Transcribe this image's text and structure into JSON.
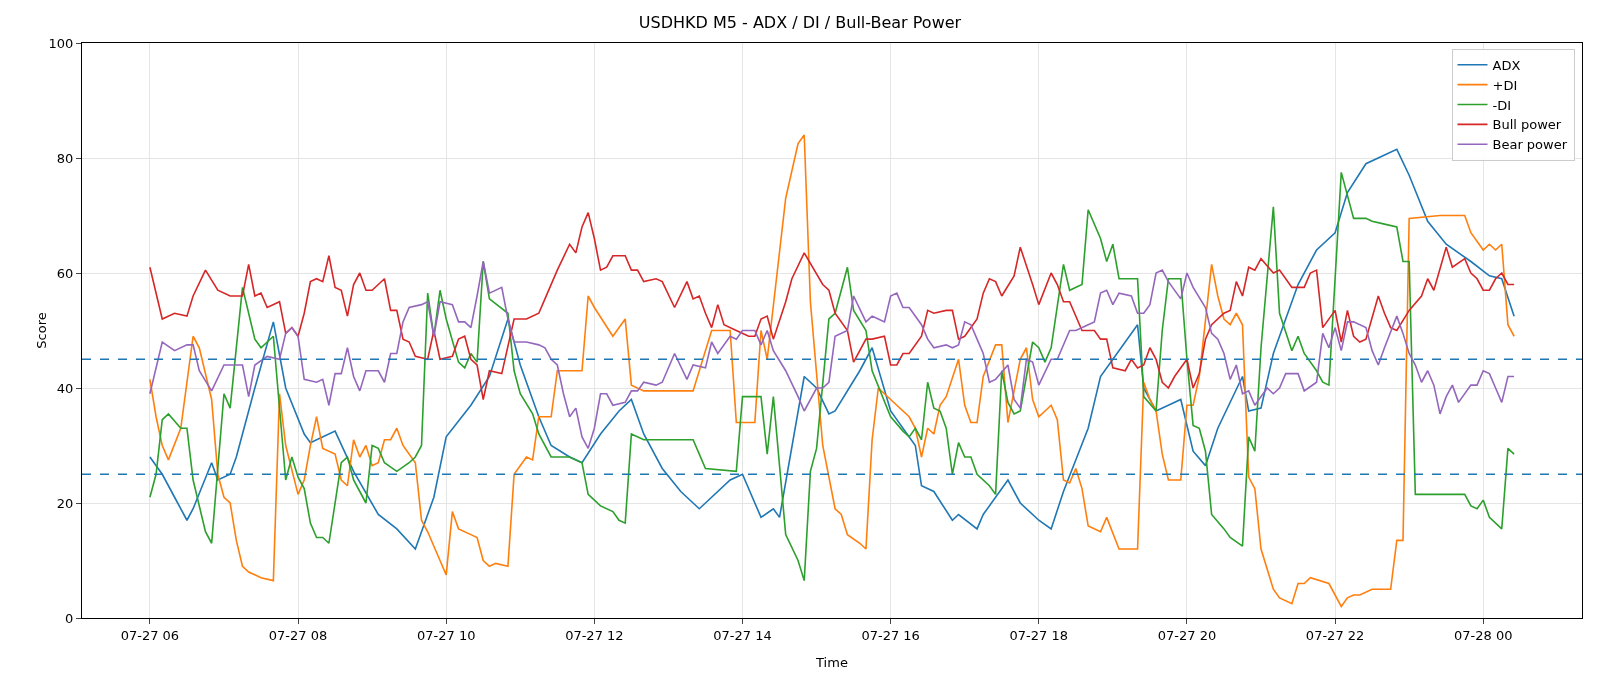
{
  "chart_data": {
    "type": "line",
    "title": "USDHKD M5 - ADX / DI / Bull-Bear Power",
    "xlabel": "Time",
    "ylabel": "Score",
    "xlim": [
      "--07-27T05:05",
      "--07-28T01:20"
    ],
    "xticks": [
      {
        "value": "--07-27T06:00",
        "label": "07-27 06"
      },
      {
        "value": "--07-27T08:00",
        "label": "07-27 08"
      },
      {
        "value": "--07-27T10:00",
        "label": "07-27 10"
      },
      {
        "value": "--07-27T12:00",
        "label": "07-27 12"
      },
      {
        "value": "--07-27T14:00",
        "label": "07-27 14"
      },
      {
        "value": "--07-27T16:00",
        "label": "07-27 16"
      },
      {
        "value": "--07-27T18:00",
        "label": "07-27 18"
      },
      {
        "value": "--07-27T20:00",
        "label": "07-27 20"
      },
      {
        "value": "--07-27T22:00",
        "label": "07-27 22"
      },
      {
        "value": "--07-28T00:00",
        "label": "07-28 00"
      }
    ],
    "ylim": [
      0,
      100
    ],
    "yticks": [
      0,
      20,
      40,
      60,
      80,
      100
    ],
    "grid": true,
    "legend": "top right",
    "line_style": "solid",
    "ref_lines": [
      {
        "axis": "y",
        "value": 45,
        "color": "#1f77b4",
        "line_style": "dashed"
      },
      {
        "axis": "y",
        "value": 25,
        "color": "#1f77b4",
        "line_style": "dashed"
      }
    ],
    "series": [
      {
        "name": "ADX",
        "color": "#1f77b4",
        "x": [
          "--07-27T06:00",
          "--07-27T06:10",
          "--07-27T06:20",
          "--07-27T06:30",
          "--07-27T06:35",
          "--07-27T06:50",
          "--07-27T06:55",
          "--07-27T07:05",
          "--07-27T07:10",
          "--07-27T07:25",
          "--07-27T07:40",
          "--07-27T07:50",
          "--07-27T08:05",
          "--07-27T08:10",
          "--07-27T08:30",
          "--07-27T08:45",
          "--07-27T09:05",
          "--07-27T09:20",
          "--07-27T09:35",
          "--07-27T09:50",
          "--07-27T10:00",
          "--07-27T10:20",
          "--07-27T10:35",
          "--07-27T10:50",
          "--07-27T11:00",
          "--07-27T11:15",
          "--07-27T11:25",
          "--07-27T11:40",
          "--07-27T11:50",
          "--07-27T12:05",
          "--07-27T12:20",
          "--07-27T12:30",
          "--07-27T12:40",
          "--07-27T12:55",
          "--07-27T13:10",
          "--07-27T13:25",
          "--07-27T13:30",
          "--07-27T13:50",
          "--07-27T14:00",
          "--07-27T14:15",
          "--07-27T14:25",
          "--07-27T14:30",
          "--07-27T14:50",
          "--07-27T15:00",
          "--07-27T15:10",
          "--07-27T15:15",
          "--07-27T15:35",
          "--07-27T15:45",
          "--07-27T16:00",
          "--07-27T16:20",
          "--07-27T16:25",
          "--07-27T16:35",
          "--07-27T16:50",
          "--07-27T16:55",
          "--07-27T17:10",
          "--07-27T17:15",
          "--07-27T17:35",
          "--07-27T17:45",
          "--07-27T18:00",
          "--07-27T18:10",
          "--07-27T18:20",
          "--07-27T18:40",
          "--07-27T18:50",
          "--07-27T19:20",
          "--07-27T19:25",
          "--07-27T19:35",
          "--07-27T19:55",
          "--07-27T20:05",
          "--07-27T20:15",
          "--07-27T20:25",
          "--07-27T20:45",
          "--07-27T20:50",
          "--07-27T21:00",
          "--07-27T21:10",
          "--07-27T21:30",
          "--07-27T21:45",
          "--07-27T22:00",
          "--07-27T22:10",
          "--07-27T22:25",
          "--07-27T22:50",
          "--07-27T23:00",
          "--07-27T23:15",
          "--07-27T23:30",
          "--07-27T23:50",
          "--07-28T00:05",
          "--07-28T00:15",
          "--07-28T00:25"
        ],
        "values": [
          28,
          25,
          21,
          17,
          19,
          27,
          24,
          25,
          28,
          40,
          51.5,
          40,
          32,
          30.5,
          32.5,
          25.5,
          18,
          15.5,
          12,
          21,
          31.5,
          37,
          42,
          52,
          44,
          35,
          30,
          28,
          27,
          32,
          36,
          38,
          32,
          26,
          22,
          19,
          20,
          24,
          25,
          17.5,
          19,
          17.5,
          42,
          40,
          35.5,
          36,
          43,
          47,
          36,
          30,
          23,
          22,
          17,
          18,
          15.5,
          18,
          24,
          20,
          17,
          15.5,
          22,
          33,
          42,
          51,
          40,
          36,
          38,
          29,
          26.5,
          33,
          42,
          36,
          36.5,
          46,
          58,
          64,
          67,
          74,
          79,
          81.5,
          77,
          69,
          65,
          62,
          59.5,
          59,
          52.5
        ]
      },
      {
        "name": "+DI",
        "color": "#ff7f0e",
        "x": [
          "--07-27T06:00",
          "--07-27T06:05",
          "--07-27T06:10",
          "--07-27T06:15",
          "--07-27T06:25",
          "--07-27T06:35",
          "--07-27T06:40",
          "--07-27T06:50",
          "--07-27T06:55",
          "--07-27T07:00",
          "--07-27T07:05",
          "--07-27T07:10",
          "--07-27T07:15",
          "--07-27T07:20",
          "--07-27T07:30",
          "--07-27T07:40",
          "--07-27T07:45",
          "--07-27T07:50",
          "--07-27T08:00",
          "--07-27T08:05",
          "--07-27T08:10",
          "--07-27T08:15",
          "--07-27T08:20",
          "--07-27T08:30",
          "--07-27T08:35",
          "--07-27T08:40",
          "--07-27T08:45",
          "--07-27T08:50",
          "--07-27T08:55",
          "--07-27T09:00",
          "--07-27T09:05",
          "--07-27T09:10",
          "--07-27T09:15",
          "--07-27T09:20",
          "--07-27T09:25",
          "--07-27T09:35",
          "--07-27T09:40",
          "--07-27T09:45",
          "--07-27T09:55",
          "--07-27T10:00",
          "--07-27T10:05",
          "--07-27T10:10",
          "--07-27T10:20",
          "--07-27T10:25",
          "--07-27T10:30",
          "--07-27T10:35",
          "--07-27T10:40",
          "--07-27T10:50",
          "--07-27T10:55",
          "--07-27T11:05",
          "--07-27T11:10",
          "--07-27T11:15",
          "--07-27T11:25",
          "--07-27T11:30",
          "--07-27T11:50",
          "--07-27T11:55",
          "--07-27T12:00",
          "--07-27T12:15",
          "--07-27T12:25",
          "--07-27T12:30",
          "--07-27T12:40",
          "--07-27T13:20",
          "--07-27T13:35",
          "--07-27T13:50",
          "--07-27T13:55",
          "--07-27T14:10",
          "--07-27T14:15",
          "--07-27T14:20",
          "--07-27T14:35",
          "--07-27T14:45",
          "--07-27T14:50",
          "--07-27T14:55",
          "--07-27T15:05",
          "--07-27T15:15",
          "--07-27T15:20",
          "--07-27T15:25",
          "--07-27T15:35",
          "--07-27T15:40",
          "--07-27T15:45",
          "--07-27T15:50",
          "--07-27T16:05",
          "--07-27T16:15",
          "--07-27T16:20",
          "--07-27T16:25",
          "--07-27T16:30",
          "--07-27T16:35",
          "--07-27T16:40",
          "--07-27T16:45",
          "--07-27T16:55",
          "--07-27T17:00",
          "--07-27T17:05",
          "--07-27T17:10",
          "--07-27T17:15",
          "--07-27T17:25",
          "--07-27T17:30",
          "--07-27T17:35",
          "--07-27T17:45",
          "--07-27T17:50",
          "--07-27T17:55",
          "--07-27T18:00",
          "--07-27T18:10",
          "--07-27T18:15",
          "--07-27T18:20",
          "--07-27T18:25",
          "--07-27T18:30",
          "--07-27T18:35",
          "--07-27T18:40",
          "--07-27T18:50",
          "--07-27T18:55",
          "--07-27T19:05",
          "--07-27T19:20",
          "--07-27T19:25",
          "--07-27T19:30",
          "--07-27T19:35",
          "--07-27T19:40",
          "--07-27T19:45",
          "--07-27T19:55",
          "--07-27T20:00",
          "--07-27T20:05",
          "--07-27T20:10",
          "--07-27T20:20",
          "--07-27T20:25",
          "--07-27T20:30",
          "--07-27T20:35",
          "--07-27T20:40",
          "--07-27T20:45",
          "--07-27T20:50",
          "--07-27T20:55",
          "--07-27T21:00",
          "--07-27T21:10",
          "--07-27T21:15",
          "--07-27T21:25",
          "--07-27T21:30",
          "--07-27T21:35",
          "--07-27T21:40",
          "--07-27T21:55",
          "--07-27T22:05",
          "--07-27T22:10",
          "--07-27T22:15",
          "--07-27T22:20",
          "--07-27T22:30",
          "--07-27T22:45",
          "--07-27T22:50",
          "--07-27T22:55",
          "--07-27T23:00",
          "--07-27T23:25",
          "--07-27T23:45",
          "--07-27T23:50",
          "--07-28T00:00",
          "--07-28T00:05",
          "--07-28T00:10",
          "--07-28T00:15",
          "--07-28T00:20",
          "--07-28T00:25"
        ],
        "values": [
          41.5,
          35,
          30,
          27.5,
          33,
          49,
          47,
          38,
          25,
          21,
          20,
          13.5,
          9,
          8,
          7,
          6.5,
          39,
          30,
          21.5,
          24,
          30,
          35,
          29.5,
          28.5,
          24,
          23,
          31,
          28,
          30,
          26.5,
          27,
          31,
          31,
          33,
          30,
          27,
          17,
          15,
          10,
          7.5,
          18.5,
          15.5,
          14.5,
          14,
          10,
          9,
          9.5,
          9,
          25,
          28,
          27.5,
          35,
          35,
          43,
          43,
          56,
          54,
          49,
          52,
          40.5,
          39.5,
          39.5,
          50,
          50,
          34,
          34,
          50,
          45,
          73,
          82.5,
          84,
          55,
          30,
          19,
          18,
          14.5,
          13,
          12,
          31,
          40,
          37,
          35,
          33,
          28,
          33,
          32,
          37,
          38.5,
          45,
          37,
          34,
          34,
          42,
          47.5,
          47.5,
          34,
          45,
          47,
          38,
          35,
          37,
          34.5,
          24,
          23.5,
          26,
          22.5,
          16,
          15,
          17.5,
          12,
          12,
          41,
          38,
          36,
          28.5,
          24,
          24,
          37,
          37,
          42,
          61.5,
          56,
          52,
          51,
          53,
          51,
          24.5,
          22.5,
          12,
          5,
          3.5,
          2.5,
          6,
          6,
          7,
          6,
          2,
          3.5,
          4,
          4,
          5,
          5,
          13.5,
          13.5,
          69.5,
          70,
          70,
          67,
          64,
          65,
          64,
          65,
          51,
          49
        ]
      },
      {
        "name": "-DI",
        "color": "#2ca02c",
        "x": [
          "--07-27T06:00",
          "--07-27T06:05",
          "--07-27T06:10",
          "--07-27T06:15",
          "--07-27T06:25",
          "--07-27T06:30",
          "--07-27T06:35",
          "--07-27T06:45",
          "--07-27T06:50",
          "--07-27T07:00",
          "--07-27T07:05",
          "--07-27T07:15",
          "--07-27T07:20",
          "--07-27T07:25",
          "--07-27T07:30",
          "--07-27T07:40",
          "--07-27T07:50",
          "--07-27T07:55",
          "--07-27T08:00",
          "--07-27T08:05",
          "--07-27T08:10",
          "--07-27T08:15",
          "--07-27T08:20",
          "--07-27T08:25",
          "--07-27T08:35",
          "--07-27T08:40",
          "--07-27T08:45",
          "--07-27T08:50",
          "--07-27T08:55",
          "--07-27T09:00",
          "--07-27T09:05",
          "--07-27T09:10",
          "--07-27T09:20",
          "--07-27T09:30",
          "--07-27T09:35",
          "--07-27T09:40",
          "--07-27T09:45",
          "--07-27T09:50",
          "--07-27T09:55",
          "--07-27T10:00",
          "--07-27T10:10",
          "--07-27T10:15",
          "--07-27T10:20",
          "--07-27T10:25",
          "--07-27T10:30",
          "--07-27T10:35",
          "--07-27T10:50",
          "--07-27T10:55",
          "--07-27T11:00",
          "--07-27T11:10",
          "--07-27T11:15",
          "--07-27T11:25",
          "--07-27T11:40",
          "--07-27T11:50",
          "--07-27T11:55",
          "--07-27T12:05",
          "--07-27T12:15",
          "--07-27T12:20",
          "--07-27T12:25",
          "--07-27T12:30",
          "--07-27T12:40",
          "--07-27T13:20",
          "--07-27T13:25",
          "--07-27T13:30",
          "--07-27T13:55",
          "--07-27T14:00",
          "--07-27T14:15",
          "--07-27T14:20",
          "--07-27T14:25",
          "--07-27T14:35",
          "--07-27T14:45",
          "--07-27T14:50",
          "--07-27T14:55",
          "--07-27T15:00",
          "--07-27T15:10",
          "--07-27T15:15",
          "--07-27T15:25",
          "--07-27T15:30",
          "--07-27T15:40",
          "--07-27T15:45",
          "--07-27T16:00",
          "--07-27T16:10",
          "--07-27T16:15",
          "--07-27T16:20",
          "--07-27T16:25",
          "--07-27T16:30",
          "--07-27T16:35",
          "--07-27T16:40",
          "--07-27T16:45",
          "--07-27T16:50",
          "--07-27T16:55",
          "--07-27T17:00",
          "--07-27T17:05",
          "--07-27T17:10",
          "--07-27T17:20",
          "--07-27T17:25",
          "--07-27T17:30",
          "--07-27T17:35",
          "--07-27T17:40",
          "--07-27T17:45",
          "--07-27T17:55",
          "--07-27T18:00",
          "--07-27T18:05",
          "--07-27T18:10",
          "--07-27T18:20",
          "--07-27T18:25",
          "--07-27T18:35",
          "--07-27T18:40",
          "--07-27T18:50",
          "--07-27T18:55",
          "--07-27T19:00",
          "--07-27T19:05",
          "--07-27T19:20",
          "--07-27T19:25",
          "--07-27T19:35",
          "--07-27T19:40",
          "--07-27T19:45",
          "--07-27T19:55",
          "--07-27T20:00",
          "--07-27T20:05",
          "--07-27T20:10",
          "--07-27T20:15",
          "--07-27T20:20",
          "--07-27T20:30",
          "--07-27T20:35",
          "--07-27T20:45",
          "--07-27T20:50",
          "--07-27T20:55",
          "--07-27T21:00",
          "--07-27T21:10",
          "--07-27T21:15",
          "--07-27T21:25",
          "--07-27T21:30",
          "--07-27T21:35",
          "--07-27T21:45",
          "--07-27T21:50",
          "--07-27T21:55",
          "--07-27T22:05",
          "--07-27T22:15",
          "--07-27T22:25",
          "--07-27T22:30",
          "--07-27T22:40",
          "--07-27T22:50",
          "--07-27T22:55",
          "--07-27T23:00",
          "--07-27T23:05",
          "--07-27T23:45",
          "--07-27T23:50",
          "--07-27T23:55",
          "--07-28T00:00",
          "--07-28T00:05",
          "--07-28T00:15",
          "--07-28T00:20",
          "--07-28T00:25"
        ],
        "values": [
          21,
          25,
          34.5,
          35.5,
          33,
          33,
          24,
          15,
          13,
          39,
          36.5,
          57.5,
          53,
          48.5,
          47,
          49,
          24,
          28,
          24.5,
          22.5,
          16.5,
          14,
          14,
          13,
          27,
          28,
          24,
          22,
          20,
          30,
          29.5,
          27,
          25.5,
          27,
          28,
          30,
          56.5,
          49,
          57,
          52,
          44.5,
          43.5,
          46,
          44.5,
          62,
          55.5,
          53,
          43,
          39,
          35.5,
          32,
          28,
          28,
          27,
          21.5,
          19.5,
          18.5,
          17,
          16.5,
          32,
          31,
          31,
          28.5,
          26,
          25.5,
          38.5,
          38.5,
          28.5,
          38.5,
          14.5,
          10,
          6.5,
          25.5,
          29.5,
          52,
          53,
          61,
          53.5,
          50,
          43,
          35,
          32.5,
          31.5,
          33,
          31,
          41,
          36.5,
          36,
          33,
          25,
          30.5,
          28,
          28,
          25,
          23,
          21.5,
          43,
          37.5,
          35.5,
          36,
          48,
          47,
          44.5,
          47,
          61.5,
          57,
          58,
          71,
          66,
          62,
          65,
          59,
          59,
          38.5,
          36,
          50,
          59,
          59,
          45,
          33.5,
          33,
          29,
          18,
          15.5,
          14,
          12.5,
          31.5,
          29,
          47,
          71.5,
          53,
          46.5,
          49,
          46,
          43,
          41,
          40.5,
          77.5,
          69.5,
          69.5,
          69,
          68.5,
          68,
          62,
          62,
          21.5,
          21.5,
          19.5,
          19,
          20.5,
          17.5,
          15.5,
          29.5,
          28.5
        ]
      },
      {
        "name": "Bull power",
        "color": "#d62728",
        "x": [
          "--07-27T06:00",
          "--07-27T06:10",
          "--07-27T06:20",
          "--07-27T06:30",
          "--07-27T06:35",
          "--07-27T06:45",
          "--07-27T06:55",
          "--07-27T07:05",
          "--07-27T07:15",
          "--07-27T07:20",
          "--07-27T07:25",
          "--07-27T07:30",
          "--07-27T07:35",
          "--07-27T07:45",
          "--07-27T07:50",
          "--07-27T07:55",
          "--07-27T08:00",
          "--07-27T08:05",
          "--07-27T08:10",
          "--07-27T08:15",
          "--07-27T08:20",
          "--07-27T08:25",
          "--07-27T08:30",
          "--07-27T08:35",
          "--07-27T08:40",
          "--07-27T08:45",
          "--07-27T08:50",
          "--07-27T08:55",
          "--07-27T09:00",
          "--07-27T09:10",
          "--07-27T09:15",
          "--07-27T09:20",
          "--07-27T09:25",
          "--07-27T09:30",
          "--07-27T09:35",
          "--07-27T09:45",
          "--07-27T09:50",
          "--07-27T09:55",
          "--07-27T10:05",
          "--07-27T10:10",
          "--07-27T10:15",
          "--07-27T10:20",
          "--07-27T10:25",
          "--07-27T10:30",
          "--07-27T10:35",
          "--07-27T10:45",
          "--07-27T10:55",
          "--07-27T11:05",
          "--07-27T11:15",
          "--07-27T11:20",
          "--07-27T11:30",
          "--07-27T11:40",
          "--07-27T11:45",
          "--07-27T11:50",
          "--07-27T11:55",
          "--07-27T12:00",
          "--07-27T12:05",
          "--07-27T12:10",
          "--07-27T12:15",
          "--07-27T12:25",
          "--07-27T12:30",
          "--07-27T12:35",
          "--07-27T12:40",
          "--07-27T12:50",
          "--07-27T12:55",
          "--07-27T13:05",
          "--07-27T13:15",
          "--07-27T13:20",
          "--07-27T13:25",
          "--07-27T13:30",
          "--07-27T13:35",
          "--07-27T13:40",
          "--07-27T13:45",
          "--07-27T13:55",
          "--07-27T14:05",
          "--07-27T14:10",
          "--07-27T14:15",
          "--07-27T14:20",
          "--07-27T14:25",
          "--07-27T14:35",
          "--07-27T14:40",
          "--07-27T14:50",
          "--07-27T15:05",
          "--07-27T15:10",
          "--07-27T15:15",
          "--07-27T15:25",
          "--07-27T15:30",
          "--07-27T15:40",
          "--07-27T15:45",
          "--07-27T15:55",
          "--07-27T16:00",
          "--07-27T16:05",
          "--07-27T16:10",
          "--07-27T16:15",
          "--07-27T16:25",
          "--07-27T16:30",
          "--07-27T16:35",
          "--07-27T16:45",
          "--07-27T16:50",
          "--07-27T16:55",
          "--07-27T17:00",
          "--07-27T17:10",
          "--07-27T17:15",
          "--07-27T17:20",
          "--07-27T17:25",
          "--07-27T17:30",
          "--07-27T17:40",
          "--07-27T17:45",
          "--07-27T17:55",
          "--07-27T18:00",
          "--07-27T18:10",
          "--07-27T18:15",
          "--07-27T18:20",
          "--07-27T18:25",
          "--07-27T18:35",
          "--07-27T18:45",
          "--07-27T18:50",
          "--07-27T18:55",
          "--07-27T19:00",
          "--07-27T19:10",
          "--07-27T19:15",
          "--07-27T19:20",
          "--07-27T19:25",
          "--07-27T19:30",
          "--07-27T19:35",
          "--07-27T19:40",
          "--07-27T19:45",
          "--07-27T19:50",
          "--07-27T20:00",
          "--07-27T20:05",
          "--07-27T20:10",
          "--07-27T20:15",
          "--07-27T20:20",
          "--07-27T20:30",
          "--07-27T20:35",
          "--07-27T20:40",
          "--07-27T20:45",
          "--07-27T20:50",
          "--07-27T20:55",
          "--07-27T21:00",
          "--07-27T21:10",
          "--07-27T21:15",
          "--07-27T21:25",
          "--07-27T21:35",
          "--07-27T21:40",
          "--07-27T21:45",
          "--07-27T21:50",
          "--07-27T22:00",
          "--07-27T22:05",
          "--07-27T22:10",
          "--07-27T22:15",
          "--07-27T22:20",
          "--07-27T22:25",
          "--07-27T22:35",
          "--07-27T22:40",
          "--07-27T22:45",
          "--07-27T22:50",
          "--07-27T23:00",
          "--07-27T23:10",
          "--07-27T23:15",
          "--07-27T23:20",
          "--07-27T23:30",
          "--07-27T23:35",
          "--07-27T23:45",
          "--07-27T23:50",
          "--07-27T23:55",
          "--07-28T00:00",
          "--07-28T00:05",
          "--07-28T00:10",
          "--07-28T00:15",
          "--07-28T00:20",
          "--07-28T00:25"
        ],
        "values": [
          61,
          52,
          53,
          52.5,
          56,
          60.5,
          57,
          56,
          56,
          61.5,
          56,
          56.5,
          54,
          55,
          49.5,
          50.5,
          49,
          53,
          58.5,
          59,
          58.5,
          63,
          57.5,
          57,
          52.5,
          58,
          60,
          57,
          57,
          59,
          53.5,
          53.5,
          48.5,
          48,
          45.5,
          45,
          50,
          45,
          45.5,
          48.5,
          49,
          45,
          44,
          38,
          43,
          42.5,
          52,
          52,
          53,
          55.5,
          60.5,
          65,
          63.5,
          68,
          70.5,
          66,
          60.5,
          61,
          63,
          63,
          60.5,
          60.5,
          58.5,
          59,
          58.5,
          54,
          58.5,
          55.5,
          56,
          53,
          50.5,
          54.5,
          51,
          50,
          49,
          49,
          52,
          52.5,
          48.5,
          55,
          59,
          63.5,
          58,
          57,
          53,
          50,
          44.5,
          48.5,
          48.5,
          49,
          44,
          44,
          46,
          46,
          49,
          53.5,
          53,
          53.5,
          53.5,
          48.5,
          49,
          52,
          56.5,
          59,
          58.5,
          56,
          59.5,
          64.5,
          58,
          54.5,
          60,
          58,
          55,
          55,
          50,
          50,
          48.5,
          48.5,
          43.5,
          43,
          45,
          43.5,
          44,
          47,
          45,
          41,
          40,
          42,
          45,
          40,
          42.5,
          48.5,
          51,
          53,
          53.5,
          58.5,
          56,
          61,
          60.5,
          62.5,
          60,
          60.5,
          57.5,
          57.5,
          60,
          60.5,
          50.5,
          53.5,
          48,
          53.5,
          49,
          48,
          48.5,
          56,
          53,
          50.5,
          50,
          53.5,
          56,
          59,
          57,
          64.5,
          61,
          62.5,
          60,
          59,
          57,
          57,
          59,
          60,
          58,
          58
        ]
      },
      {
        "name": "Bear power",
        "color": "#9467bd",
        "x": [
          "--07-27T06:00",
          "--07-27T06:10",
          "--07-27T06:20",
          "--07-27T06:30",
          "--07-27T06:35",
          "--07-27T06:40",
          "--07-27T06:50",
          "--07-27T07:00",
          "--07-27T07:15",
          "--07-27T07:20",
          "--07-27T07:25",
          "--07-27T07:35",
          "--07-27T07:45",
          "--07-27T07:50",
          "--07-27T07:55",
          "--07-27T08:00",
          "--07-27T08:05",
          "--07-27T08:15",
          "--07-27T08:20",
          "--07-27T08:25",
          "--07-27T08:30",
          "--07-27T08:35",
          "--07-27T08:40",
          "--07-27T08:45",
          "--07-27T08:50",
          "--07-27T08:55",
          "--07-27T09:05",
          "--07-27T09:10",
          "--07-27T09:15",
          "--07-27T09:20",
          "--07-27T09:25",
          "--07-27T09:30",
          "--07-27T09:40",
          "--07-27T09:45",
          "--07-27T09:50",
          "--07-27T09:55",
          "--07-27T10:05",
          "--07-27T10:10",
          "--07-27T10:15",
          "--07-27T10:20",
          "--07-27T10:25",
          "--07-27T10:30",
          "--07-27T10:35",
          "--07-27T10:45",
          "--07-27T10:50",
          "--07-27T10:55",
          "--07-27T11:05",
          "--07-27T11:15",
          "--07-27T11:20",
          "--07-27T11:25",
          "--07-27T11:30",
          "--07-27T11:35",
          "--07-27T11:40",
          "--07-27T11:45",
          "--07-27T11:50",
          "--07-27T11:55",
          "--07-27T12:00",
          "--07-27T12:05",
          "--07-27T12:10",
          "--07-27T12:15",
          "--07-27T12:25",
          "--07-27T12:30",
          "--07-27T12:35",
          "--07-27T12:40",
          "--07-27T12:50",
          "--07-27T12:55",
          "--07-27T13:05",
          "--07-27T13:15",
          "--07-27T13:20",
          "--07-27T13:30",
          "--07-27T13:35",
          "--07-27T13:40",
          "--07-27T13:50",
          "--07-27T13:55",
          "--07-27T14:00",
          "--07-27T14:10",
          "--07-27T14:15",
          "--07-27T14:20",
          "--07-27T14:25",
          "--07-27T14:35",
          "--07-27T14:45",
          "--07-27T14:50",
          "--07-27T15:00",
          "--07-27T15:05",
          "--07-27T15:10",
          "--07-27T15:15",
          "--07-27T15:25",
          "--07-27T15:30",
          "--07-27T15:40",
          "--07-27T15:45",
          "--07-27T15:50",
          "--07-27T15:55",
          "--07-27T16:00",
          "--07-27T16:05",
          "--07-27T16:10",
          "--07-27T16:15",
          "--07-27T16:25",
          "--07-27T16:30",
          "--07-27T16:35",
          "--07-27T16:45",
          "--07-27T16:50",
          "--07-27T16:55",
          "--07-27T17:00",
          "--07-27T17:05",
          "--07-27T17:10",
          "--07-27T17:15",
          "--07-27T17:20",
          "--07-27T17:25",
          "--07-27T17:35",
          "--07-27T17:40",
          "--07-27T17:45",
          "--07-27T17:50",
          "--07-27T17:55",
          "--07-27T18:00",
          "--07-27T18:10",
          "--07-27T18:15",
          "--07-27T18:25",
          "--07-27T18:30",
          "--07-27T18:40",
          "--07-27T18:45",
          "--07-27T18:50",
          "--07-27T18:55",
          "--07-27T19:00",
          "--07-27T19:05",
          "--07-27T19:15",
          "--07-27T19:20",
          "--07-27T19:25",
          "--07-27T19:30",
          "--07-27T19:35",
          "--07-27T19:40",
          "--07-27T19:45",
          "--07-27T19:55",
          "--07-27T20:00",
          "--07-27T20:05",
          "--07-27T20:15",
          "--07-27T20:20",
          "--07-27T20:25",
          "--07-27T20:30",
          "--07-27T20:35",
          "--07-27T20:40",
          "--07-27T20:45",
          "--07-27T20:50",
          "--07-27T20:55",
          "--07-27T21:05",
          "--07-27T21:10",
          "--07-27T21:15",
          "--07-27T21:20",
          "--07-27T21:30",
          "--07-27T21:35",
          "--07-27T21:45",
          "--07-27T21:50",
          "--07-27T21:55",
          "--07-27T22:00",
          "--07-27T22:05",
          "--07-27T22:10",
          "--07-27T22:15",
          "--07-27T22:25",
          "--07-27T22:30",
          "--07-27T22:35",
          "--07-27T22:40",
          "--07-27T22:50",
          "--07-27T22:55",
          "--07-27T23:00",
          "--07-27T23:05",
          "--07-27T23:10",
          "--07-27T23:15",
          "--07-27T23:20",
          "--07-27T23:25",
          "--07-27T23:30",
          "--07-27T23:35",
          "--07-27T23:40",
          "--07-27T23:50",
          "--07-27T23:55",
          "--07-28T00:00",
          "--07-28T00:05",
          "--07-28T00:10",
          "--07-28T00:15",
          "--07-28T00:20",
          "--07-28T00:25"
        ],
        "values": [
          39,
          48,
          46.5,
          47.5,
          47.5,
          43,
          39.5,
          44,
          44,
          38.5,
          44,
          45.5,
          45,
          49.5,
          50.5,
          49,
          41.5,
          41,
          41.5,
          37,
          42.5,
          42.5,
          47,
          42,
          39.5,
          43,
          43,
          41,
          46,
          46,
          51.5,
          54,
          54.5,
          55,
          49,
          55,
          54.5,
          51.5,
          51.5,
          50.5,
          56,
          62,
          56.5,
          57.5,
          52,
          48,
          48,
          47.5,
          47,
          45,
          44,
          39,
          35,
          36.5,
          31.5,
          29.5,
          33,
          39,
          39,
          37,
          37.5,
          39.5,
          39.5,
          41,
          40.5,
          41,
          46,
          41.5,
          44,
          43.5,
          48,
          46,
          49,
          48.5,
          50,
          50,
          47.5,
          50,
          46.5,
          43,
          38.5,
          36,
          40,
          40,
          41,
          49,
          50,
          56,
          51.5,
          52.5,
          52,
          51.5,
          56,
          56.5,
          54,
          54,
          51,
          48.5,
          47,
          47.5,
          47,
          47.5,
          51.5,
          51,
          48.5,
          46,
          41,
          41.5,
          44,
          38,
          36.5,
          45,
          44.5,
          40.5,
          45,
          45,
          50,
          50,
          51,
          51.5,
          56.5,
          57,
          54.5,
          56.5,
          56,
          53,
          53,
          54.5,
          60,
          60.5,
          58.5,
          55.5,
          60,
          57.5,
          54,
          49.5,
          48.5,
          46,
          41.5,
          44,
          39,
          39.5,
          37,
          40,
          39,
          40,
          42.5,
          42.5,
          39.5,
          41,
          49.5,
          47,
          50.5,
          46.5,
          51.5,
          51.5,
          50.5,
          46.5,
          44,
          47,
          52.5,
          49.5,
          46,
          44,
          41,
          43,
          40.5,
          35.5,
          38.5,
          40.5,
          37.5,
          40.5,
          40.5,
          43,
          42.5,
          40,
          37.5,
          42,
          42
        ]
      }
    ]
  }
}
